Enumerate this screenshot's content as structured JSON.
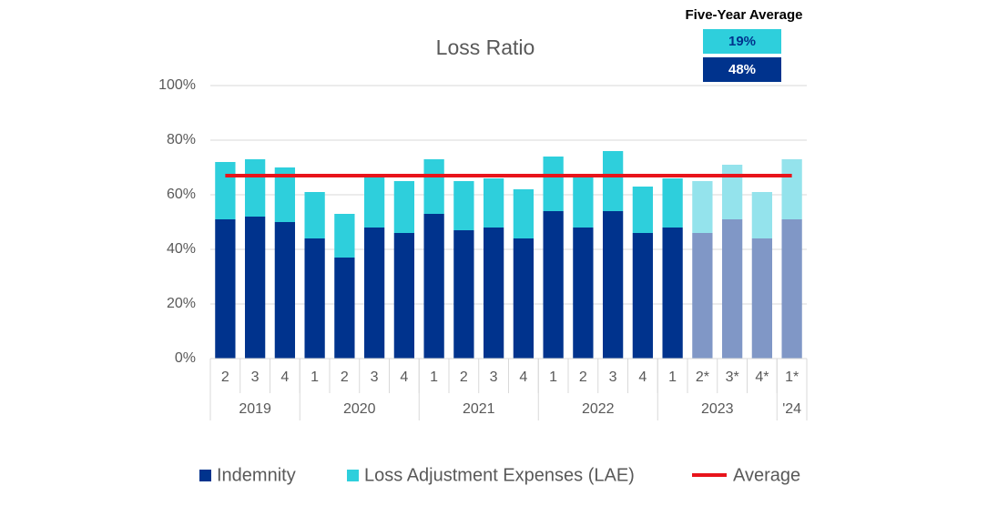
{
  "chart_data": {
    "type": "bar",
    "stacked": true,
    "title": "Loss Ratio",
    "categories": [
      "2",
      "3",
      "4",
      "1",
      "2",
      "3",
      "4",
      "1",
      "2",
      "3",
      "4",
      "1",
      "2",
      "3",
      "4",
      "1",
      "2*",
      "3*",
      "4*",
      "1*"
    ],
    "x_groups": [
      {
        "label": "2019",
        "size": 3
      },
      {
        "label": "2020",
        "size": 4
      },
      {
        "label": "2021",
        "size": 4
      },
      {
        "label": "2022",
        "size": 4
      },
      {
        "label": "2023",
        "size": 4
      },
      {
        "label": "'24",
        "size": 1
      }
    ],
    "series": [
      {
        "name": "Indemnity",
        "color": "#00338d",
        "colors": [
          "#00338d",
          "#00338d",
          "#00338d",
          "#00338d",
          "#00338d",
          "#00338d",
          "#00338d",
          "#00338d",
          "#00338d",
          "#00338d",
          "#00338d",
          "#00338d",
          "#00338d",
          "#00338d",
          "#00338d",
          "#00338d",
          "#8097c6",
          "#8097c6",
          "#8097c6",
          "#8097c6"
        ],
        "values": [
          51,
          52,
          50,
          44,
          37,
          48,
          46,
          53,
          47,
          48,
          44,
          54,
          48,
          54,
          46,
          48,
          46,
          51,
          44,
          51
        ]
      },
      {
        "name": "Loss Adjustment Expenses (LAE)",
        "color": "#2ecfdc",
        "colors": [
          "#2ecfdc",
          "#2ecfdc",
          "#2ecfdc",
          "#2ecfdc",
          "#2ecfdc",
          "#2ecfdc",
          "#2ecfdc",
          "#2ecfdc",
          "#2ecfdc",
          "#2ecfdc",
          "#2ecfdc",
          "#2ecfdc",
          "#2ecfdc",
          "#2ecfdc",
          "#2ecfdc",
          "#2ecfdc",
          "#94e3ec",
          "#94e3ec",
          "#94e3ec",
          "#94e3ec"
        ],
        "values": [
          21,
          21,
          20,
          17,
          16,
          19,
          19,
          20,
          18,
          18,
          18,
          20,
          19,
          22,
          17,
          18,
          19,
          20,
          17,
          22
        ]
      }
    ],
    "average_line": {
      "name": "Average",
      "value": 67,
      "color": "#e8141b"
    },
    "five_year_average": {
      "title": "Five-Year Average",
      "lae": "19%",
      "indemnity": "48%"
    },
    "ylim": [
      0,
      100
    ],
    "yticks": [
      {
        "value": 0,
        "label": "0%"
      },
      {
        "value": 20,
        "label": "20%"
      },
      {
        "value": 40,
        "label": "40%"
      },
      {
        "value": 60,
        "label": "60%"
      },
      {
        "value": 80,
        "label": "80%"
      },
      {
        "value": 100,
        "label": "100%"
      }
    ],
    "grid": true
  }
}
